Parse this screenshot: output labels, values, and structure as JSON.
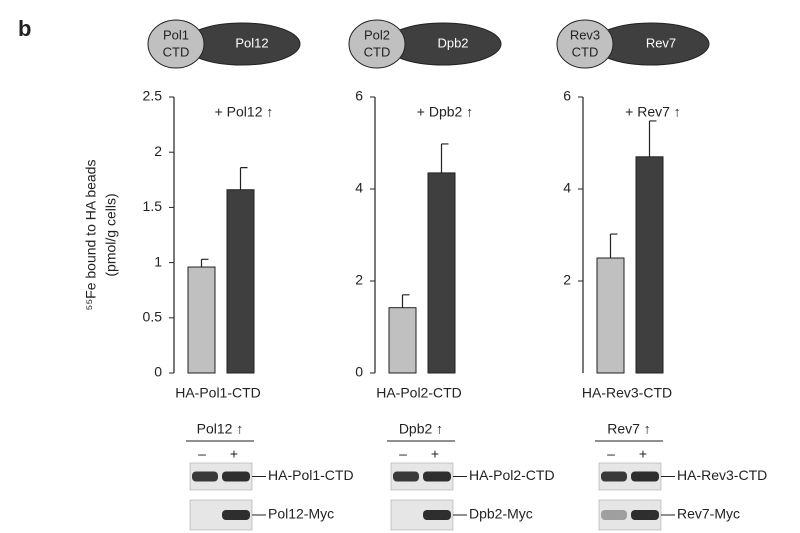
{
  "panel_label": "b",
  "y_label": [
    "⁵⁵Fe bound to HA beads",
    "(pmol/g cells)"
  ],
  "chart_data": [
    {
      "type": "bar",
      "annotation": "+ Pol12 ↑",
      "x_label": "HA-Pol1-CTD",
      "values": [
        0.96,
        1.66
      ],
      "errors": [
        0.07,
        0.2
      ],
      "colors": [
        "#c0c0c0",
        "#3f3f3f"
      ],
      "ylim": [
        0,
        2.5
      ],
      "yticks": [
        0,
        0.5,
        1,
        1.5,
        2,
        2.5
      ]
    },
    {
      "type": "bar",
      "annotation": "+ Dpb2 ↑",
      "x_label": "HA-Pol2-CTD",
      "values": [
        1.42,
        4.35
      ],
      "errors": [
        0.28,
        0.63
      ],
      "colors": [
        "#c0c0c0",
        "#3f3f3f"
      ],
      "ylim": [
        0,
        6
      ],
      "yticks": [
        0,
        2,
        4,
        6
      ]
    },
    {
      "type": "bar",
      "annotation": "+ Rev7 ↑",
      "x_label": "HA-Rev3-CTD",
      "values": [
        2.5,
        4.7
      ],
      "errors": [
        0.52,
        0.78
      ],
      "colors": [
        "#c0c0c0",
        "#3f3f3f"
      ],
      "ylim": [
        0,
        6
      ],
      "yticks": [
        2,
        4,
        6
      ]
    }
  ],
  "diagrams": [
    {
      "left": [
        "Pol1",
        "CTD"
      ],
      "right": "Pol12"
    },
    {
      "left": [
        "Pol2",
        "CTD"
      ],
      "right": "Dpb2"
    },
    {
      "left": [
        "Rev3",
        "CTD"
      ],
      "right": "Rev7"
    }
  ],
  "blots": [
    {
      "header": "Pol12 ↑",
      "lanes": [
        "–",
        "+"
      ],
      "bands": [
        "HA-Pol1-CTD",
        "Pol12-Myc"
      ]
    },
    {
      "header": "Dpb2 ↑",
      "lanes": [
        "–",
        "+"
      ],
      "bands": [
        "HA-Pol2-CTD",
        "Dpb2-Myc"
      ]
    },
    {
      "header": "Rev7 ↑",
      "lanes": [
        "–",
        "+"
      ],
      "bands": [
        "HA-Rev3-CTD",
        "Rev7-Myc"
      ]
    }
  ]
}
